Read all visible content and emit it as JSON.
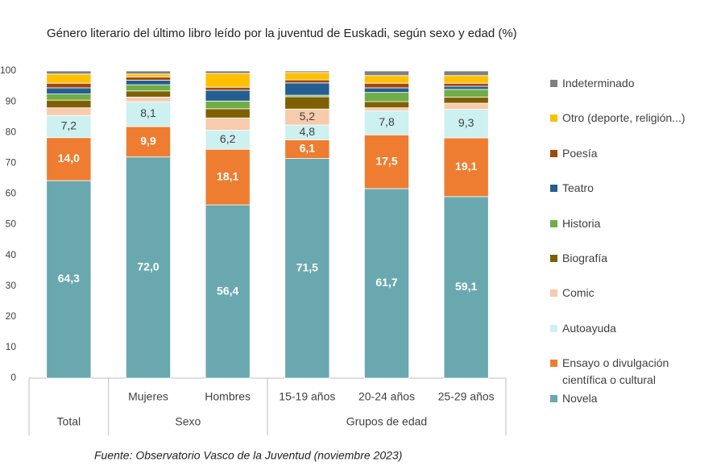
{
  "chart_data": {
    "type": "stacked_bar",
    "title": "Género literario del último libro leído por la juventud de Euskadi, según sexo y edad (%)",
    "source": "Fuente: Observatorio Vasco de la Juventud (noviembre 2023)",
    "groups": [
      {
        "label": "Total",
        "categories": [
          null
        ]
      },
      {
        "label": "Sexo",
        "categories": [
          "Mujeres",
          "Hombres"
        ]
      },
      {
        "label": "Grupos de edad",
        "categories": [
          "15-19 años",
          "20-24 años",
          "25-29 años"
        ]
      }
    ],
    "ylim": [
      0,
      100
    ],
    "yticks": [
      0,
      10,
      20,
      30,
      40,
      50,
      60,
      70,
      80,
      90,
      100
    ],
    "grid": false,
    "legend": "right",
    "series": [
      {
        "name": "Novela",
        "color": "#6aa8b0",
        "values": [
          64.3,
          72.0,
          56.4,
          71.5,
          61.7,
          59.1
        ],
        "value_labels": [
          "64,3",
          "72,0",
          "56,4",
          "71,5",
          "61,7",
          "59,1"
        ]
      },
      {
        "name": "Ensayo o divulgación científica o cultural",
        "color": "#ee7d31",
        "values": [
          14.0,
          9.9,
          18.1,
          6.1,
          17.5,
          19.1
        ],
        "value_labels": [
          "14,0",
          "9,9",
          "18,1",
          "6,1",
          "17,5",
          "19,1"
        ]
      },
      {
        "name": "Autoayuda",
        "color": "#cdf0f0",
        "values": [
          7.2,
          8.1,
          6.2,
          4.8,
          7.8,
          9.3
        ],
        "value_labels": [
          "7,2",
          "8,1",
          "6,2",
          "4,8",
          "7,8",
          "9,3"
        ]
      },
      {
        "name": "Comic",
        "color": "#f8cbad",
        "values": [
          2.5,
          1.5,
          4.0,
          5.2,
          1.0,
          2.0
        ],
        "value_labels": [
          null,
          null,
          null,
          "5,2",
          null,
          null
        ]
      },
      {
        "name": "Biografía",
        "color": "#7f6000",
        "values": [
          2.5,
          2.0,
          3.0,
          4.0,
          2.0,
          2.0
        ]
      },
      {
        "name": "Historia",
        "color": "#70ad47",
        "values": [
          2.0,
          2.0,
          2.5,
          0.5,
          3.0,
          2.5
        ]
      },
      {
        "name": "Teatro",
        "color": "#255e91",
        "values": [
          2.0,
          1.5,
          3.5,
          4.0,
          1.5,
          1.0
        ]
      },
      {
        "name": "Poesía",
        "color": "#9e480e",
        "values": [
          1.5,
          1.0,
          1.0,
          1.0,
          1.5,
          1.0
        ]
      },
      {
        "name": "Otro (deporte, religión...)",
        "color": "#ffc000",
        "values": [
          3.0,
          1.0,
          4.5,
          2.4,
          2.5,
          2.5
        ]
      },
      {
        "name": "Indeterminado",
        "color": "#7f7f7f",
        "values": [
          1.0,
          1.0,
          0.8,
          0.5,
          1.5,
          1.5
        ]
      }
    ]
  }
}
